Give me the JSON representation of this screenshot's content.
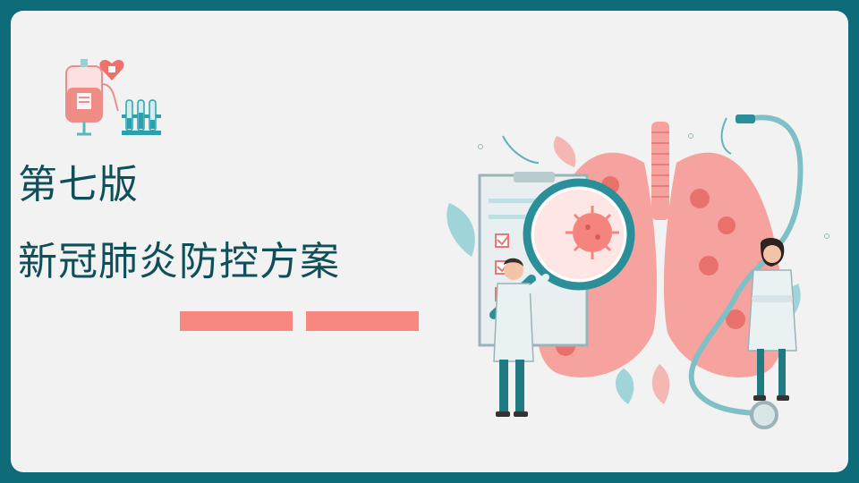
{
  "slide": {
    "title_line1": "第七版",
    "title_line2": "新冠肺炎防控方案"
  },
  "colors": {
    "frame": "#0e6b78",
    "background": "#f2f2f2",
    "title": "#0f4f59",
    "accent_bar": "#f7877f",
    "lung": "#f6a3a0",
    "teal": "#2aa2ad"
  },
  "icons": [
    "iv-blood-bag-icon",
    "heart-icon",
    "test-tubes-icon",
    "lungs-icon",
    "virus-icon",
    "magnifier-icon",
    "clipboard-icon",
    "stethoscope-icon",
    "male-doctor-icon",
    "female-doctor-icon",
    "leaf-icon"
  ]
}
